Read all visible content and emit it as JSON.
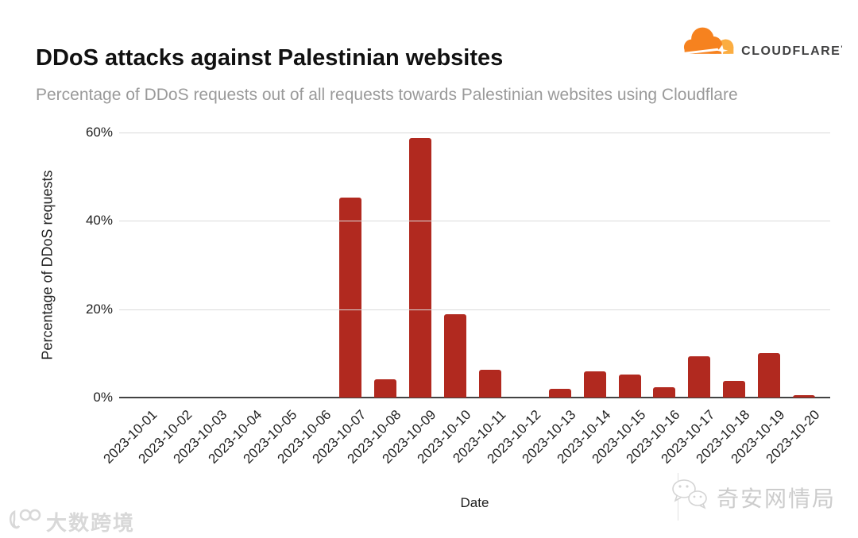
{
  "header": {
    "title": "DDoS attacks against Palestinian websites",
    "subtitle": "Percentage of DDoS requests out of all requests towards Palestinian websites using Cloudflare",
    "logo": {
      "wordmark": "CLOUDFLARE",
      "trademark": "'",
      "cloud_color": "#F6821F",
      "cloud_accent": "#FBAD41",
      "text_color": "#404041"
    }
  },
  "chart_data": {
    "type": "bar",
    "title": "DDoS attacks against Palestinian websites",
    "subtitle": "Percentage of DDoS requests out of all requests towards Palestinian websites using Cloudflare",
    "xlabel": "Date",
    "ylabel": "Percentage of DDoS requests",
    "ylim": [
      0,
      60
    ],
    "yticks_labels": [
      "0%",
      "20%",
      "40%",
      "60%"
    ],
    "ytick_values": [
      0,
      20,
      40,
      60
    ],
    "grid": true,
    "legend": "none",
    "bar_color": "#B1291F",
    "categories": [
      "2023-10-01",
      "2023-10-02",
      "2023-10-03",
      "2023-10-04",
      "2023-10-05",
      "2023-10-06",
      "2023-10-07",
      "2023-10-08",
      "2023-10-09",
      "2023-10-10",
      "2023-10-11",
      "2023-10-12",
      "2023-10-13",
      "2023-10-14",
      "2023-10-15",
      "2023-10-16",
      "2023-10-17",
      "2023-10-18",
      "2023-10-19",
      "2023-10-20"
    ],
    "values": [
      0,
      0,
      0,
      0,
      0,
      0,
      45.2,
      4.1,
      58.8,
      18.9,
      6.2,
      0,
      2.0,
      5.9,
      5.2,
      2.3,
      9.3,
      3.7,
      10.0,
      0.6
    ]
  },
  "watermarks": {
    "bottom_left": "大数跨境",
    "bottom_right": "奇安网情局"
  }
}
